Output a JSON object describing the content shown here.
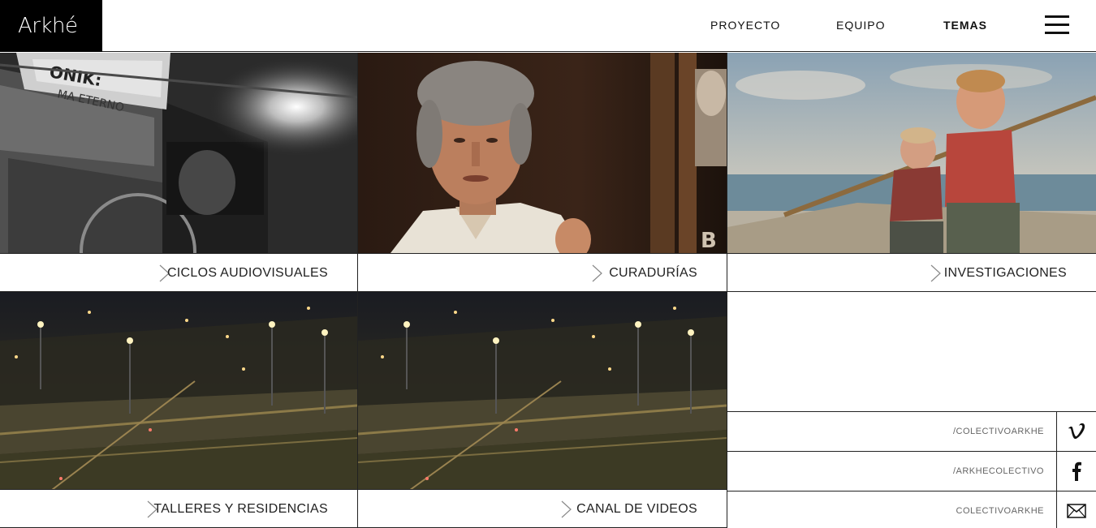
{
  "brand": {
    "logo_text": "Arkhé"
  },
  "nav": {
    "items": [
      {
        "label": "PROYECTO",
        "active": false
      },
      {
        "label": "EQUIPO",
        "active": false
      },
      {
        "label": "TEMAS",
        "active": true
      }
    ]
  },
  "tiles": [
    {
      "label": "CICLOS AUDIOVISUALES",
      "image": "black-and-white film projection photo"
    },
    {
      "label": "CURADURÍAS",
      "image": "portrait of grey-haired man speaking"
    },
    {
      "label": "INVESTIGACIONES",
      "image": "vintage beach photo of two children with fishing pole"
    },
    {
      "label": "TALLERES Y RESIDENCIAS",
      "image": "night city highway scene"
    },
    {
      "label": "CANAL DE VIDEOS",
      "image": "night city highway scene"
    }
  ],
  "social": [
    {
      "handle": "/COLECTIVOARKHE",
      "icon": "vimeo-icon"
    },
    {
      "handle": "/ARKHECOLECTIVO",
      "icon": "facebook-icon"
    },
    {
      "handle": "COLECTIVOARKHE",
      "icon": "mail-icon"
    }
  ],
  "colors": {
    "accent": "#000000",
    "border": "#222222",
    "muted_text": "#666666"
  }
}
